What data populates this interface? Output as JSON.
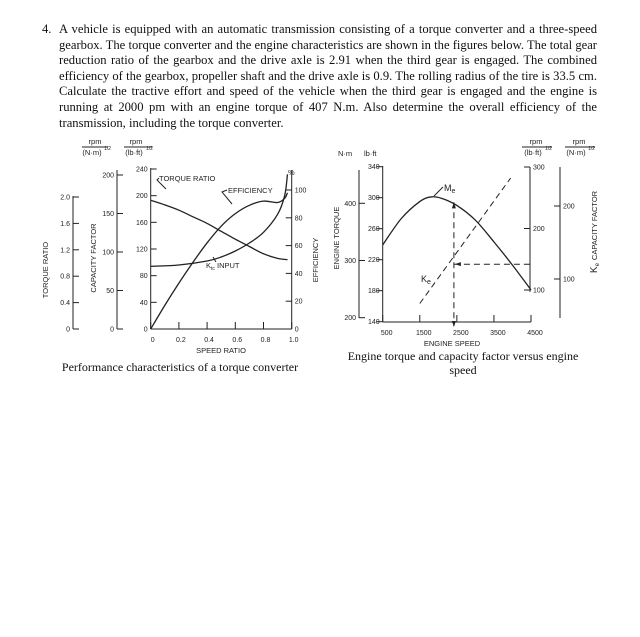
{
  "problem": {
    "number": "4.",
    "text": "A vehicle is equipped with an automatic transmission consisting of a torque converter and a three-speed gearbox. The torque converter and the engine characteristics are shown in the figures below. The total gear reduction ratio of the gearbox and the drive axle is 2.91 when the third gear is engaged. The combined efficiency of the gearbox, propeller shaft and the drive axle is 0.9. The rolling radius of the tire is 33.5 cm. Calculate the tractive effort and speed of the vehicle when the third gear is engaged and the engine is running at 2000 pm with an engine torque of 407 N.m. Also determine the overall efficiency of the transmission, including the torque converter."
  },
  "chart_data": [
    {
      "type": "line",
      "caption": "Performance characteristics of a torque converter",
      "xlabel": "SPEED RATIO",
      "xlim": [
        0,
        1.0
      ],
      "xticks": [
        "0",
        "0.2",
        "0.4",
        "0.6",
        "0.8",
        "1.0"
      ],
      "axes": {
        "torque_ratio": {
          "label": "TORQUE RATIO",
          "range": [
            0,
            2.0
          ],
          "ticks": [
            "0",
            "0.4",
            "0.8",
            "1.2",
            "1.6",
            "2.0"
          ]
        },
        "capacity_factor_nm": {
          "label": "CAPACITY FACTOR",
          "unit_num": "rpm",
          "unit_den": "(N·m)",
          "unit_exp": "1/2",
          "range": [
            0,
            200
          ],
          "ticks": [
            "0",
            "50",
            "100",
            "150",
            "200"
          ]
        },
        "capacity_factor_lbft": {
          "unit_num": "rpm",
          "unit_den": "(lb·ft)",
          "unit_exp": "1/2",
          "range": [
            0,
            240
          ],
          "ticks": [
            "0",
            "40",
            "80",
            "120",
            "160",
            "200",
            "240"
          ]
        },
        "efficiency": {
          "label": "EFFICIENCY",
          "unit": "%",
          "range": [
            0,
            100
          ],
          "ticks": [
            "0",
            "20",
            "40",
            "60",
            "80",
            "100"
          ]
        }
      },
      "series": [
        {
          "name": "TORQUE RATIO",
          "axis": "torque_ratio",
          "x": [
            0,
            0.1,
            0.2,
            0.3,
            0.4,
            0.5,
            0.6,
            0.7,
            0.8,
            0.9,
            0.97
          ],
          "y": [
            1.95,
            1.88,
            1.8,
            1.7,
            1.6,
            1.48,
            1.36,
            1.25,
            1.14,
            1.07,
            1.05
          ]
        },
        {
          "name": "EFFICIENCY",
          "axis": "efficiency",
          "x": [
            0,
            0.1,
            0.2,
            0.3,
            0.4,
            0.5,
            0.6,
            0.7,
            0.8,
            0.9,
            0.95,
            0.97
          ],
          "y": [
            0,
            17,
            33,
            48,
            62,
            74,
            83,
            89,
            92,
            91,
            94,
            98
          ]
        },
        {
          "name": "K_tc INPUT",
          "label_main": "K",
          "label_sub": "tc",
          "label_rest": " INPUT",
          "axis": "capacity_factor_lbft",
          "x": [
            0,
            0.2,
            0.4,
            0.5,
            0.6,
            0.7,
            0.8,
            0.9,
            0.95,
            0.97
          ],
          "y": [
            94,
            96,
            102,
            108,
            117,
            129,
            145,
            172,
            200,
            232
          ]
        }
      ]
    },
    {
      "type": "line",
      "caption": "Engine torque and capacity factor versus engine speed",
      "xlabel": "ENGINE SPEED",
      "xlim": [
        500,
        4500
      ],
      "xticks": [
        "500",
        "1500",
        "2500",
        "3500",
        "4500"
      ],
      "axes": {
        "torque_nm": {
          "label": "ENGINE TORQUE",
          "unit": "N·m",
          "range": [
            200,
            400
          ],
          "ticks": [
            "200",
            "300",
            "400"
          ]
        },
        "torque_lbft": {
          "unit": "lb·ft",
          "range": [
            140,
            340
          ],
          "ticks": [
            "140",
            "180",
            "220",
            "260",
            "300",
            "340"
          ]
        },
        "capacity_lbft": {
          "unit_num": "rpm",
          "unit_den": "(lb·ft)",
          "unit_exp": "1/2",
          "range": [
            100,
            300
          ],
          "ticks": [
            "100",
            "200",
            "300"
          ]
        },
        "capacity_nm": {
          "label": "CAPACITY FACTOR",
          "label_prefix": "K",
          "label_prefix_sub": "e",
          "unit_num": "rpm",
          "unit_den": "(N·m)",
          "unit_exp": "1/2",
          "ticks": [
            "100",
            "200"
          ]
        }
      },
      "series": [
        {
          "name": "Me",
          "label_main": "M",
          "label_sub": "e",
          "axis": "torque_lbft",
          "x": [
            500,
            1000,
            1500,
            1800,
            2100,
            2500,
            3000,
            3500,
            4000,
            4500
          ],
          "y": [
            239,
            273,
            295,
            301,
            299,
            290,
            271,
            243,
            213,
            181
          ]
        },
        {
          "name": "Ke",
          "label_main": "K",
          "label_sub": "e",
          "axis": "capacity_lbft",
          "style": "dashed",
          "x": [
            1500,
            3950
          ],
          "y": [
            78,
            282
          ]
        }
      ],
      "annotations": [
        {
          "type": "dashed-guide-vertical",
          "x": 2420,
          "from_axis": "torque_lbft",
          "y_top": 294
        },
        {
          "type": "dashed-guide-horizontal",
          "y_capacity_lbft": 142,
          "x_from": 2420,
          "x_to": 4500
        }
      ]
    }
  ]
}
